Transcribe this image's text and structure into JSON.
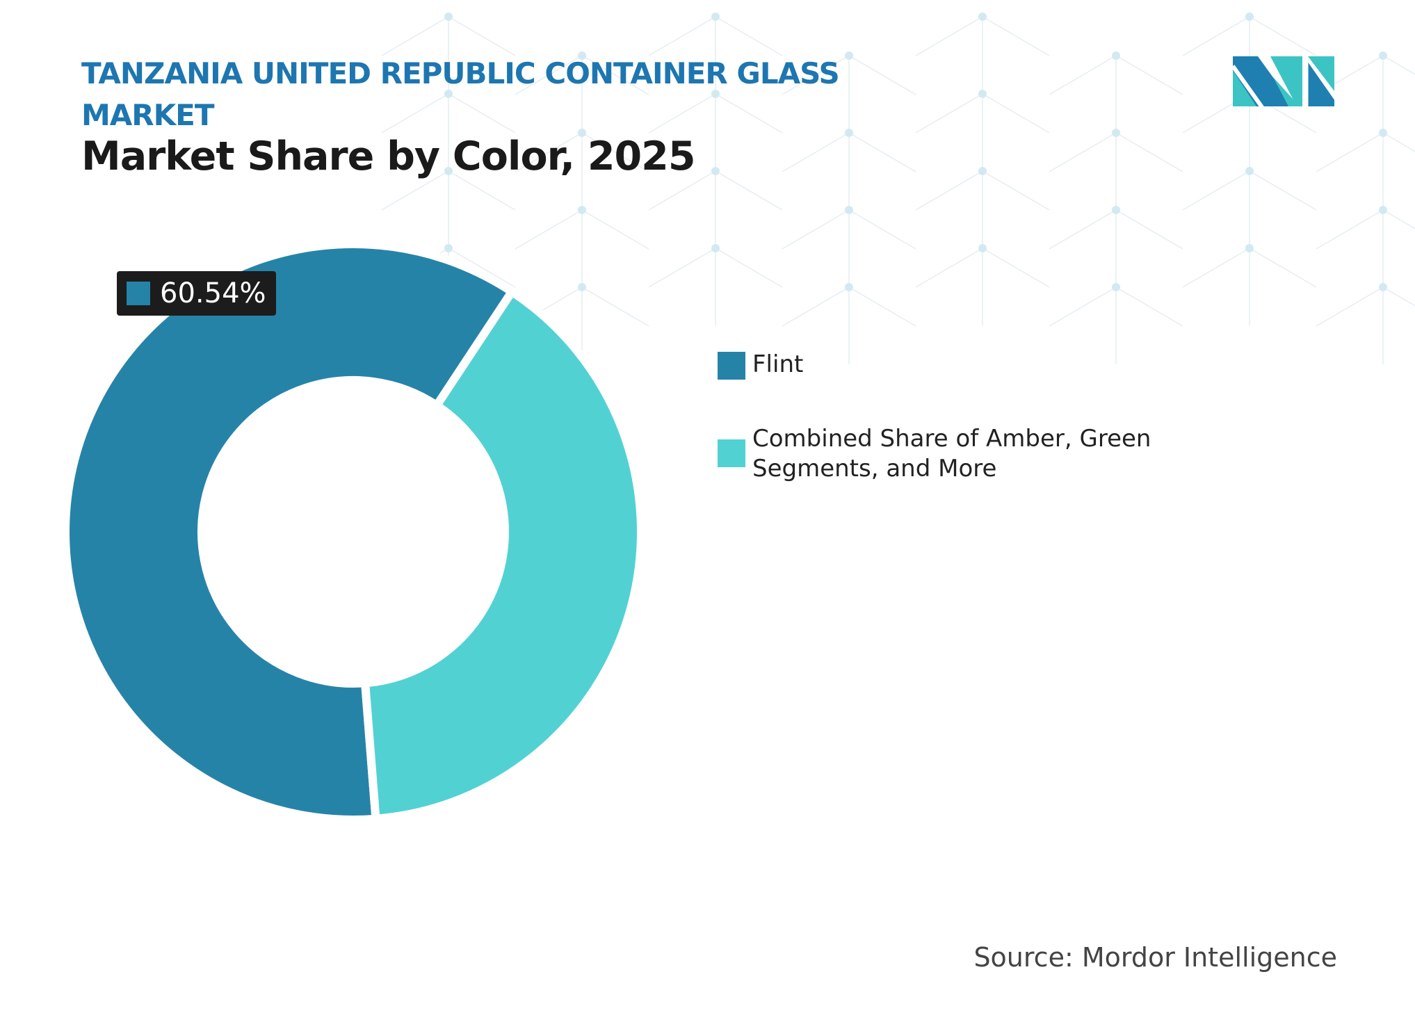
{
  "header": {
    "title": "TANZANIA UNITED REPUBLIC CONTAINER GLASS MARKET",
    "subtitle": "Market Share by Color, 2025"
  },
  "logo": {
    "name": "mordor-intelligence-logo",
    "colors": [
      "#1f7fb0",
      "#3cc4c4"
    ]
  },
  "source": "Source: Mordor Intelligence",
  "chart_data": {
    "type": "pie",
    "donut": true,
    "title": "Market Share by Color, 2025",
    "categories": [
      "Flint",
      "Combined Share of Amber, Green Segments, and More"
    ],
    "values": [
      60.54,
      39.46
    ],
    "colors": [
      "#2683a8",
      "#52d1d3"
    ],
    "data_labels": [
      {
        "category": "Flint",
        "text": "60.54%"
      }
    ],
    "legend_placement": "right"
  }
}
